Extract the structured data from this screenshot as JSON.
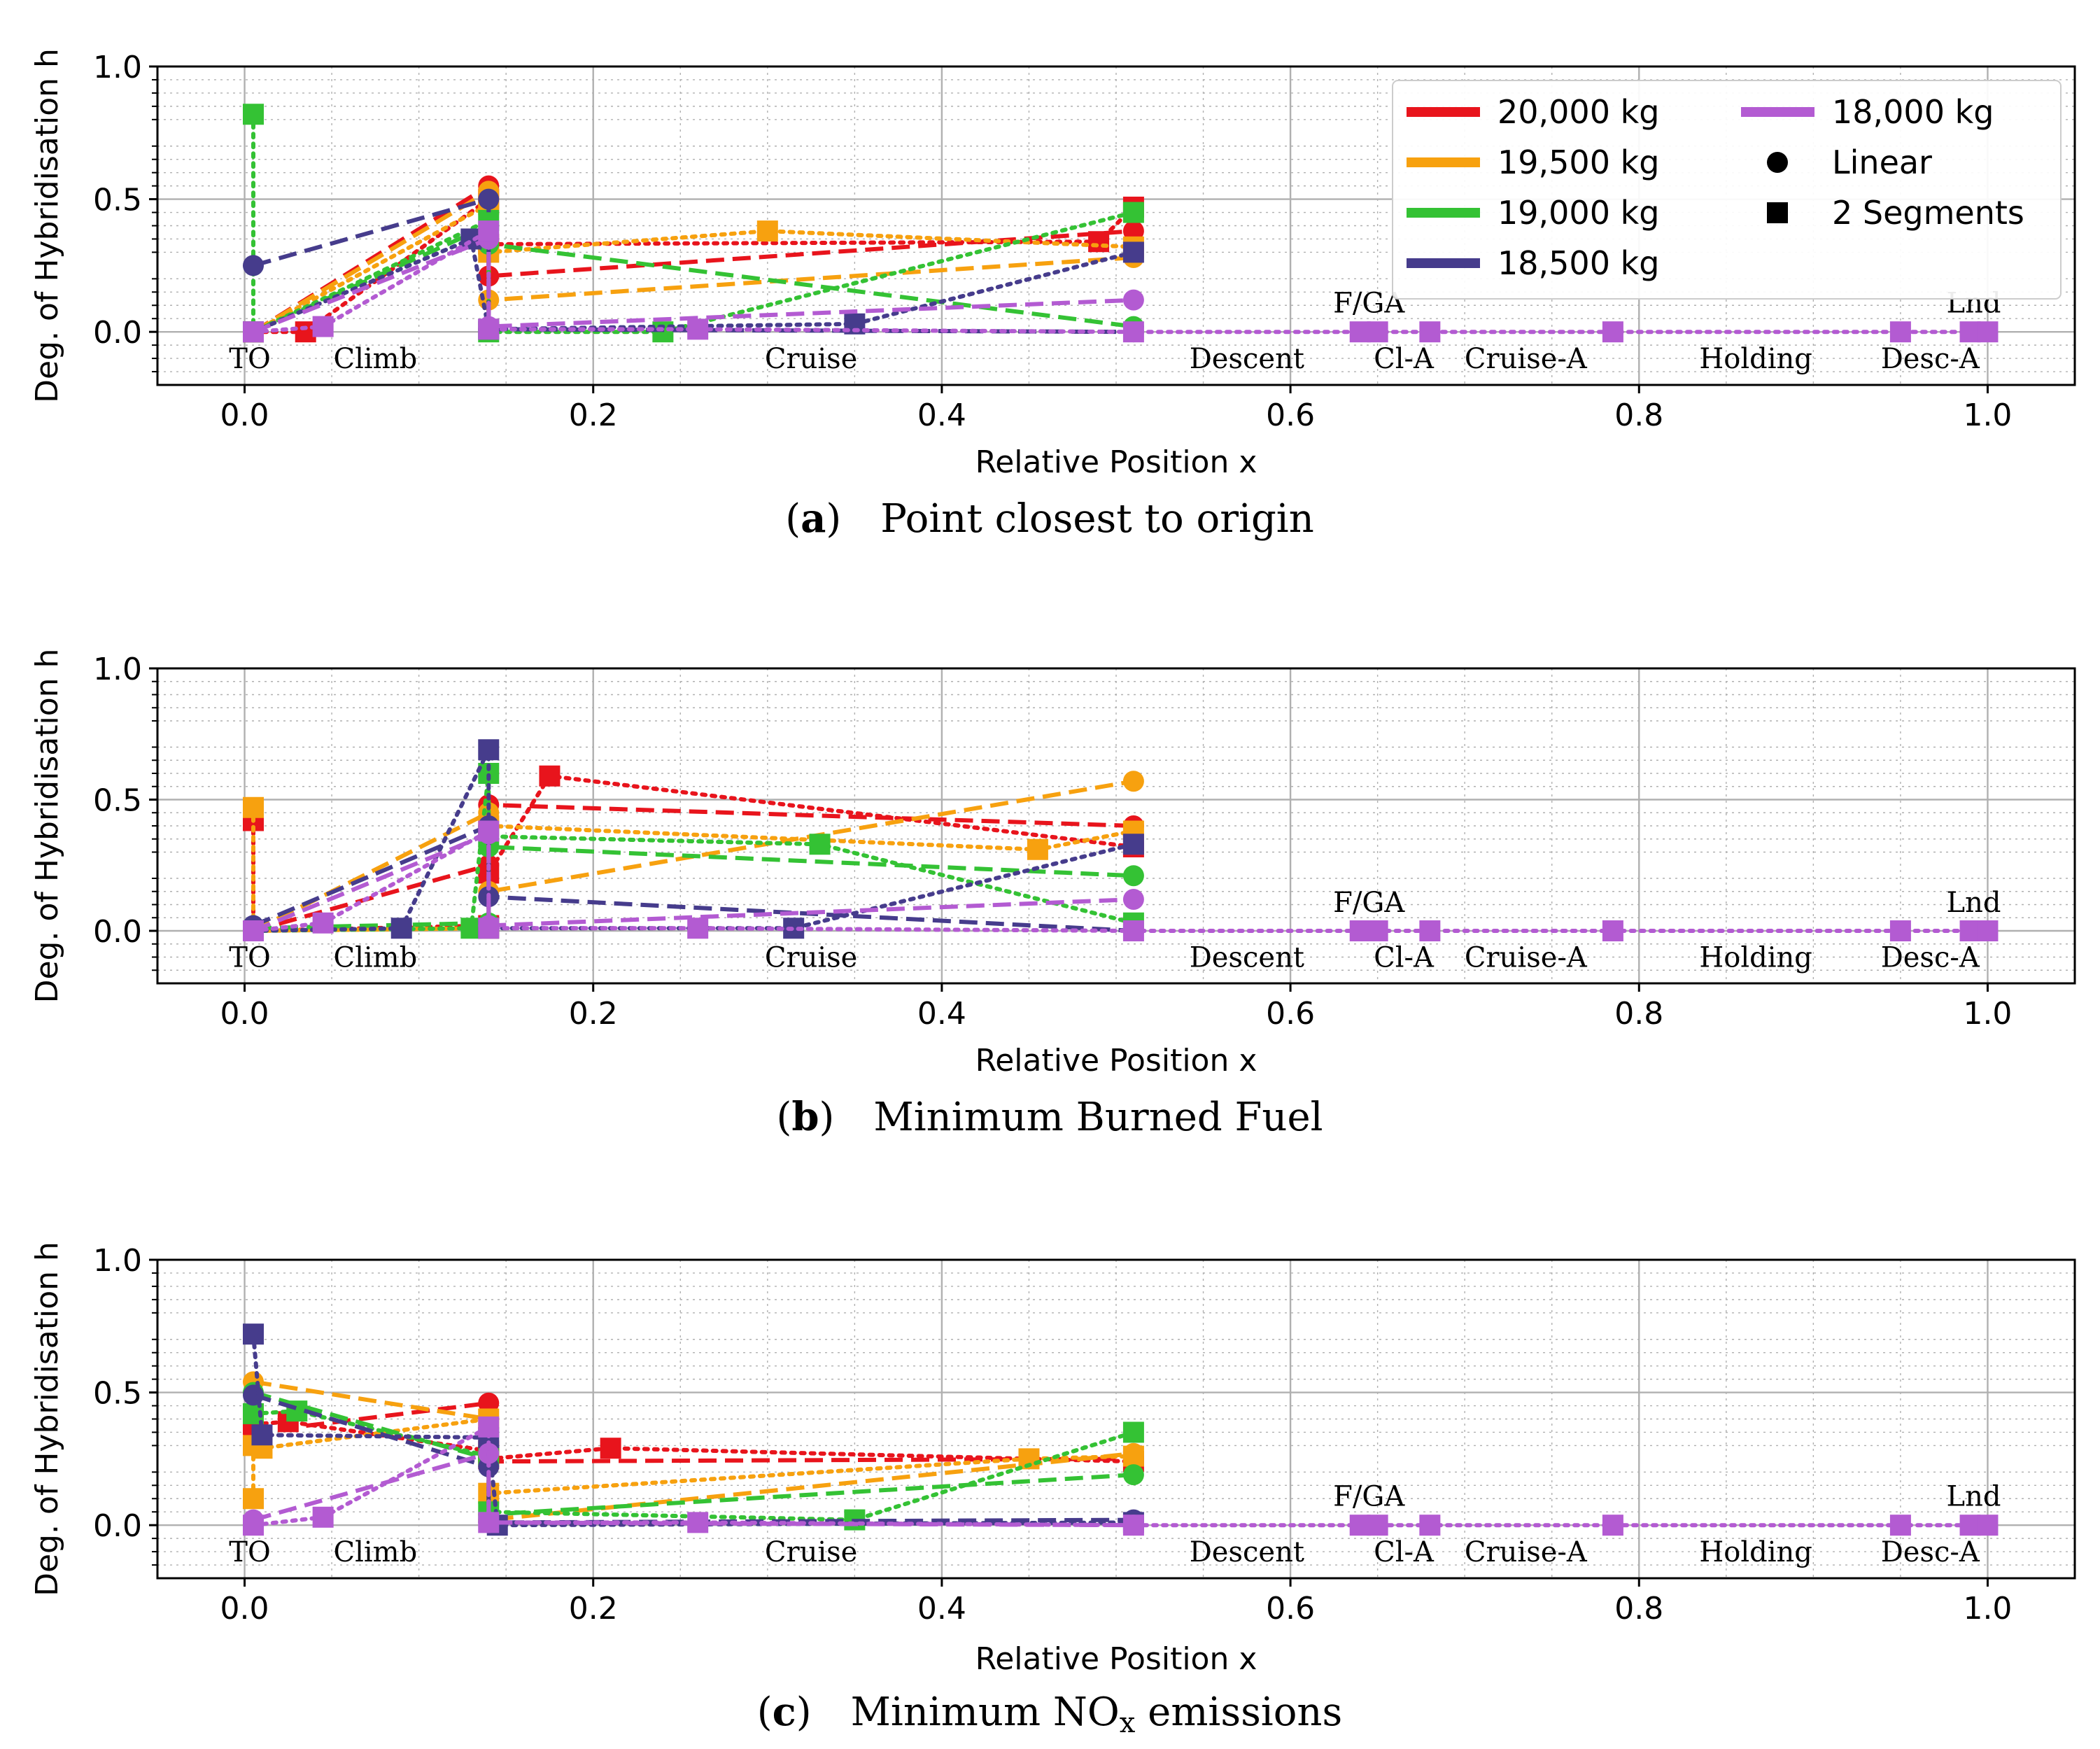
{
  "figure": {
    "series_legend": [
      {
        "name": "20,000 kg",
        "color": "#e8141c"
      },
      {
        "name": "19,500 kg",
        "color": "#f7a10f"
      },
      {
        "name": "19,000 kg",
        "color": "#34c234"
      },
      {
        "name": "18,500 kg",
        "color": "#463c8c"
      },
      {
        "name": "18,000 kg",
        "color": "#b35bd2"
      }
    ],
    "marker_legend": [
      {
        "name": "Linear",
        "marker": "circle"
      },
      {
        "name": "2 Segments",
        "marker": "square"
      }
    ]
  },
  "chart_data": [
    {
      "type": "line",
      "caption_letter": "a",
      "caption_text": "Point closest to origin",
      "xlabel": "Relative Position x",
      "ylabel": "Deg. of Hybridisation h",
      "xlim": [
        -0.05,
        1.05
      ],
      "ylim": [
        -0.2,
        1.0
      ],
      "xticks": [
        "0.0",
        "0.2",
        "0.4",
        "0.6",
        "0.8",
        "1.0"
      ],
      "yticks": [
        "0.0",
        "0.5",
        "1.0"
      ],
      "show_legend": true,
      "phase_labels": [
        {
          "text": "TO",
          "x": 0.003,
          "y": -0.1
        },
        {
          "text": "Climb",
          "x": 0.075,
          "y": -0.1
        },
        {
          "text": "Cruise",
          "x": 0.325,
          "y": -0.1
        },
        {
          "text": "Descent",
          "x": 0.575,
          "y": -0.1
        },
        {
          "text": "F/GA",
          "x": 0.645,
          "y": 0.11
        },
        {
          "text": "Cl-A",
          "x": 0.665,
          "y": -0.1
        },
        {
          "text": "Cruise-A",
          "x": 0.735,
          "y": -0.1
        },
        {
          "text": "Holding",
          "x": 0.867,
          "y": -0.1
        },
        {
          "text": "Desc-A",
          "x": 0.967,
          "y": -0.1
        },
        {
          "text": "Lnd",
          "x": 0.992,
          "y": 0.11
        }
      ],
      "series": [
        {
          "name": "20,000 kg",
          "color": "#e8141c",
          "style": "dashed",
          "marker": "circle",
          "x": [
            0.005,
            0.14,
            0.14,
            0.51
          ],
          "y": [
            0.0,
            0.55,
            0.21,
            0.38
          ]
        },
        {
          "name": "20,000 kg",
          "color": "#e8141c",
          "style": "dotted",
          "marker": "square",
          "x": [
            0.005,
            0.035,
            0.14,
            0.14,
            0.49,
            0.51
          ],
          "y": [
            0.0,
            0.0,
            0.5,
            0.33,
            0.34,
            0.47
          ]
        },
        {
          "name": "19,500 kg",
          "color": "#f7a10f",
          "style": "dashed",
          "marker": "circle",
          "x": [
            0.005,
            0.14,
            0.14,
            0.51
          ],
          "y": [
            0.0,
            0.53,
            0.12,
            0.28
          ]
        },
        {
          "name": "19,500 kg",
          "color": "#f7a10f",
          "style": "dotted",
          "marker": "square",
          "x": [
            0.005,
            0.14,
            0.14,
            0.3,
            0.51
          ],
          "y": [
            0.0,
            0.48,
            0.3,
            0.38,
            0.32
          ]
        },
        {
          "name": "19,000 kg",
          "color": "#34c234",
          "style": "dashed",
          "marker": "circle",
          "x": [
            0.005,
            0.14,
            0.14,
            0.51
          ],
          "y": [
            0.0,
            0.4,
            0.33,
            0.02
          ]
        },
        {
          "name": "19,000 kg",
          "color": "#34c234",
          "style": "dotted",
          "marker": "square",
          "x": [
            0.005,
            0.005,
            0.14,
            0.14,
            0.24,
            0.51
          ],
          "y": [
            0.82,
            0.0,
            0.42,
            0.0,
            0.0,
            0.45
          ]
        },
        {
          "name": "18,500 kg",
          "color": "#463c8c",
          "style": "dashed",
          "marker": "circle",
          "x": [
            0.005,
            0.14,
            0.14,
            0.51
          ],
          "y": [
            0.25,
            0.5,
            0.01,
            0.0
          ]
        },
        {
          "name": "18,500 kg",
          "color": "#463c8c",
          "style": "dotted",
          "marker": "square",
          "x": [
            0.005,
            0.13,
            0.14,
            0.35,
            0.51
          ],
          "y": [
            0.0,
            0.35,
            0.01,
            0.03,
            0.3
          ]
        },
        {
          "name": "18,000 kg",
          "color": "#b35bd2",
          "style": "dashed",
          "marker": "circle",
          "x": [
            0.005,
            0.14,
            0.14,
            0.51
          ],
          "y": [
            0.0,
            0.35,
            0.02,
            0.12
          ]
        },
        {
          "name": "18,000 kg",
          "color": "#b35bd2",
          "style": "dotted",
          "marker": "square",
          "x": [
            0.005,
            0.045,
            0.14,
            0.14,
            0.26,
            0.51,
            0.64,
            0.65,
            0.68,
            0.785,
            0.95,
            0.99,
            1.0
          ],
          "y": [
            0.0,
            0.02,
            0.38,
            0.01,
            0.01,
            0.0,
            0.0,
            0.0,
            0.0,
            0.0,
            0.0,
            0.0,
            0.0
          ]
        }
      ]
    },
    {
      "type": "line",
      "caption_letter": "b",
      "caption_text": "Minimum Burned Fuel",
      "xlabel": "Relative Position x",
      "ylabel": "Deg. of Hybridisation h",
      "xlim": [
        -0.05,
        1.05
      ],
      "ylim": [
        -0.2,
        1.0
      ],
      "xticks": [
        "0.0",
        "0.2",
        "0.4",
        "0.6",
        "0.8",
        "1.0"
      ],
      "yticks": [
        "0.0",
        "0.5",
        "1.0"
      ],
      "show_legend": false,
      "phase_labels": [
        {
          "text": "TO",
          "x": 0.003,
          "y": -0.1
        },
        {
          "text": "Climb",
          "x": 0.075,
          "y": -0.1
        },
        {
          "text": "Cruise",
          "x": 0.325,
          "y": -0.1
        },
        {
          "text": "Descent",
          "x": 0.575,
          "y": -0.1
        },
        {
          "text": "F/GA",
          "x": 0.645,
          "y": 0.11
        },
        {
          "text": "Cl-A",
          "x": 0.665,
          "y": -0.1
        },
        {
          "text": "Cruise-A",
          "x": 0.735,
          "y": -0.1
        },
        {
          "text": "Holding",
          "x": 0.867,
          "y": -0.1
        },
        {
          "text": "Desc-A",
          "x": 0.967,
          "y": -0.1
        },
        {
          "text": "Lnd",
          "x": 0.992,
          "y": 0.11
        }
      ],
      "series": [
        {
          "name": "20,000 kg",
          "color": "#e8141c",
          "style": "dashed",
          "marker": "circle",
          "x": [
            0.005,
            0.14,
            0.14,
            0.51
          ],
          "y": [
            0.0,
            0.25,
            0.48,
            0.4
          ]
        },
        {
          "name": "20,000 kg",
          "color": "#e8141c",
          "style": "dotted",
          "marker": "square",
          "x": [
            0.005,
            0.005,
            0.14,
            0.14,
            0.175,
            0.51
          ],
          "y": [
            0.42,
            0.0,
            0.02,
            0.22,
            0.59,
            0.32
          ]
        },
        {
          "name": "19,500 kg",
          "color": "#f7a10f",
          "style": "dashed",
          "marker": "circle",
          "x": [
            0.005,
            0.14,
            0.14,
            0.51
          ],
          "y": [
            0.0,
            0.45,
            0.15,
            0.57
          ]
        },
        {
          "name": "19,500 kg",
          "color": "#f7a10f",
          "style": "dotted",
          "marker": "square",
          "x": [
            0.005,
            0.005,
            0.14,
            0.14,
            0.455,
            0.51
          ],
          "y": [
            0.47,
            0.0,
            0.01,
            0.4,
            0.31,
            0.38
          ]
        },
        {
          "name": "19,000 kg",
          "color": "#34c234",
          "style": "dashed",
          "marker": "circle",
          "x": [
            0.005,
            0.14,
            0.14,
            0.51
          ],
          "y": [
            0.01,
            0.03,
            0.32,
            0.21
          ]
        },
        {
          "name": "19,000 kg",
          "color": "#34c234",
          "style": "dotted",
          "marker": "square",
          "x": [
            0.005,
            0.13,
            0.14,
            0.14,
            0.33,
            0.51
          ],
          "y": [
            0.0,
            0.01,
            0.6,
            0.36,
            0.33,
            0.03
          ]
        },
        {
          "name": "18,500 kg",
          "color": "#463c8c",
          "style": "dashed",
          "marker": "circle",
          "x": [
            0.005,
            0.14,
            0.14,
            0.51
          ],
          "y": [
            0.02,
            0.4,
            0.13,
            0.0
          ]
        },
        {
          "name": "18,500 kg",
          "color": "#463c8c",
          "style": "dotted",
          "marker": "square",
          "x": [
            0.005,
            0.09,
            0.14,
            0.14,
            0.315,
            0.51
          ],
          "y": [
            0.0,
            0.01,
            0.69,
            0.01,
            0.01,
            0.33
          ]
        },
        {
          "name": "18,000 kg",
          "color": "#b35bd2",
          "style": "dashed",
          "marker": "circle",
          "x": [
            0.005,
            0.14,
            0.14,
            0.51
          ],
          "y": [
            0.0,
            0.37,
            0.02,
            0.12
          ]
        },
        {
          "name": "18,000 kg",
          "color": "#b35bd2",
          "style": "dotted",
          "marker": "square",
          "x": [
            0.005,
            0.045,
            0.14,
            0.14,
            0.26,
            0.51,
            0.64,
            0.65,
            0.68,
            0.785,
            0.95,
            0.99,
            1.0
          ],
          "y": [
            0.0,
            0.03,
            0.38,
            0.01,
            0.01,
            0.0,
            0.0,
            0.0,
            0.0,
            0.0,
            0.0,
            0.0,
            0.0
          ]
        }
      ]
    },
    {
      "type": "line",
      "caption_letter": "c",
      "caption_text": "Minimum NO",
      "caption_sub": "x",
      "caption_tail": "emissions",
      "xlabel": "Relative Position x",
      "ylabel": "Deg. of Hybridisation h",
      "xlim": [
        -0.05,
        1.05
      ],
      "ylim": [
        -0.2,
        1.0
      ],
      "xticks": [
        "0.0",
        "0.2",
        "0.4",
        "0.6",
        "0.8",
        "1.0"
      ],
      "yticks": [
        "0.0",
        "0.5",
        "1.0"
      ],
      "show_legend": false,
      "phase_labels": [
        {
          "text": "TO",
          "x": 0.003,
          "y": -0.1
        },
        {
          "text": "Climb",
          "x": 0.075,
          "y": -0.1
        },
        {
          "text": "Cruise",
          "x": 0.325,
          "y": -0.1
        },
        {
          "text": "Descent",
          "x": 0.575,
          "y": -0.1
        },
        {
          "text": "F/GA",
          "x": 0.645,
          "y": 0.11
        },
        {
          "text": "Cl-A",
          "x": 0.665,
          "y": -0.1
        },
        {
          "text": "Cruise-A",
          "x": 0.735,
          "y": -0.1
        },
        {
          "text": "Holding",
          "x": 0.867,
          "y": -0.1
        },
        {
          "text": "Desc-A",
          "x": 0.967,
          "y": -0.1
        },
        {
          "text": "Lnd",
          "x": 0.992,
          "y": 0.11
        }
      ],
      "series": [
        {
          "name": "20,000 kg",
          "color": "#e8141c",
          "style": "dashed",
          "marker": "circle",
          "x": [
            0.005,
            0.14,
            0.14,
            0.51
          ],
          "y": [
            0.35,
            0.46,
            0.24,
            0.25
          ]
        },
        {
          "name": "20,000 kg",
          "color": "#e8141c",
          "style": "dotted",
          "marker": "square",
          "x": [
            0.005,
            0.025,
            0.14,
            0.14,
            0.21,
            0.51
          ],
          "y": [
            0.38,
            0.39,
            0.28,
            0.25,
            0.29,
            0.24
          ]
        },
        {
          "name": "19,500 kg",
          "color": "#f7a10f",
          "style": "dashed",
          "marker": "circle",
          "x": [
            0.005,
            0.14,
            0.14,
            0.51
          ],
          "y": [
            0.54,
            0.4,
            0.02,
            0.27
          ]
        },
        {
          "name": "19,500 kg",
          "color": "#f7a10f",
          "style": "dotted",
          "marker": "square",
          "x": [
            0.005,
            0.005,
            0.01,
            0.14,
            0.14,
            0.45,
            0.51
          ],
          "y": [
            0.1,
            0.3,
            0.29,
            0.4,
            0.12,
            0.25,
            0.26
          ]
        },
        {
          "name": "19,000 kg",
          "color": "#34c234",
          "style": "dashed",
          "marker": "circle",
          "x": [
            0.005,
            0.14,
            0.14,
            0.51
          ],
          "y": [
            0.5,
            0.25,
            0.04,
            0.19
          ]
        },
        {
          "name": "19,000 kg",
          "color": "#34c234",
          "style": "dotted",
          "marker": "square",
          "x": [
            0.005,
            0.03,
            0.14,
            0.14,
            0.35,
            0.51
          ],
          "y": [
            0.42,
            0.43,
            0.26,
            0.05,
            0.02,
            0.35
          ]
        },
        {
          "name": "18,500 kg",
          "color": "#463c8c",
          "style": "dashed",
          "marker": "circle",
          "x": [
            0.005,
            0.14,
            0.14,
            0.51
          ],
          "y": [
            0.49,
            0.22,
            0.01,
            0.02
          ]
        },
        {
          "name": "18,500 kg",
          "color": "#463c8c",
          "style": "dotted",
          "marker": "square",
          "x": [
            0.005,
            0.01,
            0.14,
            0.145,
            0.51
          ],
          "y": [
            0.72,
            0.34,
            0.33,
            0.0,
            0.01
          ]
        },
        {
          "name": "18,000 kg",
          "color": "#b35bd2",
          "style": "dashed",
          "marker": "circle",
          "x": [
            0.005,
            0.14,
            0.14,
            0.51
          ],
          "y": [
            0.02,
            0.27,
            0.01,
            0.0
          ]
        },
        {
          "name": "18,000 kg",
          "color": "#b35bd2",
          "style": "dotted",
          "marker": "square",
          "x": [
            0.005,
            0.045,
            0.14,
            0.14,
            0.26,
            0.51,
            0.64,
            0.65,
            0.68,
            0.785,
            0.95,
            0.99,
            1.0
          ],
          "y": [
            0.0,
            0.03,
            0.37,
            0.01,
            0.01,
            0.0,
            0.0,
            0.0,
            0.0,
            0.0,
            0.0,
            0.0,
            0.0
          ]
        }
      ]
    }
  ]
}
